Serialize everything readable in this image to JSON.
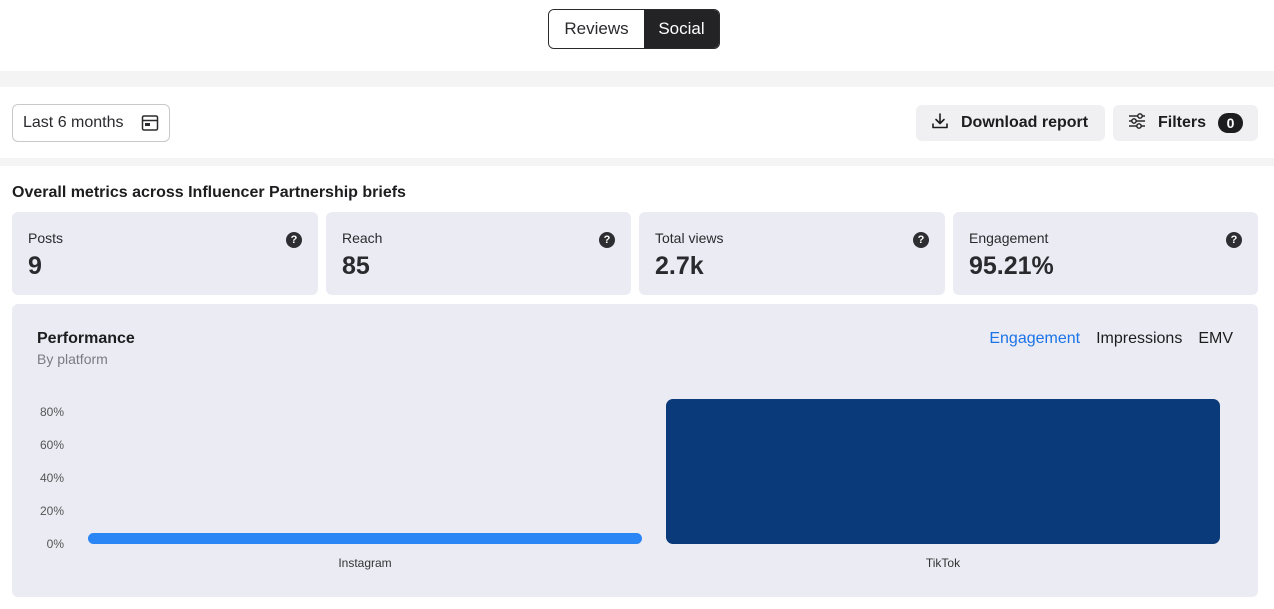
{
  "toggle": {
    "reviews": "Reviews",
    "social": "Social"
  },
  "toolbar": {
    "date_range": "Last 6 months",
    "download_label": "Download report",
    "filters_label": "Filters",
    "filters_count": "0"
  },
  "section_title": "Overall metrics across Influencer Partnership briefs",
  "metrics": [
    {
      "label": "Posts",
      "value": "9"
    },
    {
      "label": "Reach",
      "value": "85"
    },
    {
      "label": "Total views",
      "value": "2.7k"
    },
    {
      "label": "Engagement",
      "value": "95.21%"
    }
  ],
  "help_glyph": "?",
  "performance": {
    "title": "Performance",
    "subtitle": "By platform",
    "tabs": [
      "Engagement",
      "Impressions",
      "EMV"
    ],
    "active_tab": "Engagement"
  },
  "colors": {
    "instagram_bar": "#2a85f5",
    "tiktok_bar": "#0a3a7a",
    "active_tab": "#1a73e8"
  },
  "chart_data": {
    "type": "bar",
    "categories": [
      "Instagram",
      "TikTok"
    ],
    "values": [
      2.5,
      88
    ],
    "ylim": [
      0,
      88
    ],
    "yticks": [
      0,
      20,
      40,
      60,
      80
    ],
    "ytick_labels": [
      "0%",
      "20%",
      "40%",
      "60%",
      "80%"
    ],
    "xlabel": "",
    "ylabel": "",
    "grid": false,
    "colors": [
      "#2a85f5",
      "#0a3a7a"
    ]
  }
}
